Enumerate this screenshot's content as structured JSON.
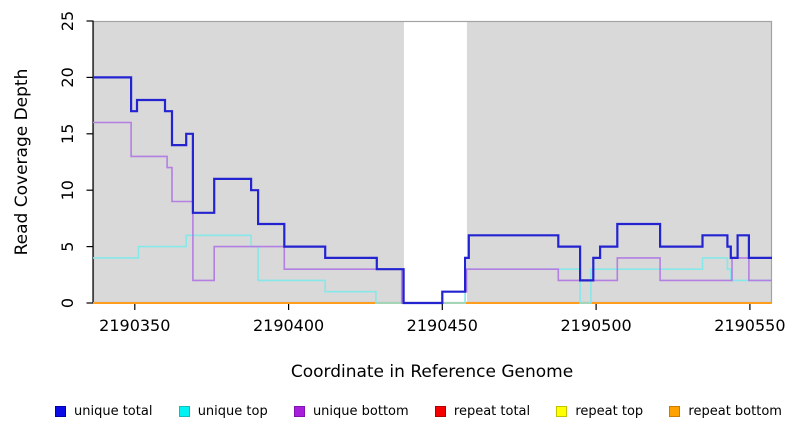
{
  "chart_data": {
    "type": "line",
    "subtype": "step",
    "title": "",
    "xlabel": "Coordinate in Reference Genome",
    "ylabel": "Read Coverage Depth",
    "xlim": [
      2190336.4,
      2190557.2
    ],
    "ylim": [
      0,
      25
    ],
    "x_tick_values": [
      2190350,
      2190400,
      2190450,
      2190500,
      2190550
    ],
    "x_tick_labels": [
      "2190350",
      "2190400",
      "2190450",
      "2190500",
      "2190550"
    ],
    "y_tick_values": [
      0,
      5,
      10,
      15,
      20,
      25
    ],
    "y_tick_labels": [
      "0",
      "5",
      "10",
      "15",
      "20",
      "25"
    ],
    "grid": false,
    "legend_position": "bottom",
    "colors": {
      "plot_background": "#d9d9d9",
      "plot_border": "#a3a3a3",
      "highlight_band": "#ffffff",
      "axis": "#000000"
    },
    "highlight_band": {
      "x_start": 2190437.5,
      "x_end": 2190458.0
    },
    "draw_order": [
      3,
      4,
      5,
      1,
      2,
      0
    ],
    "series": [
      {
        "name": "unique total",
        "line_color": "#2323d0",
        "line_width": 2.2,
        "swatch_fill": "#0b0be6",
        "swatch_border": "#0000a8",
        "steps": [
          [
            2190336.4,
            20
          ],
          [
            2190348.8,
            17
          ],
          [
            2190350.7,
            18
          ],
          [
            2190359.8,
            17
          ],
          [
            2190362.1,
            14
          ],
          [
            2190366.7,
            15
          ],
          [
            2190368.9,
            8
          ],
          [
            2190375.8,
            11
          ],
          [
            2190387.8,
            10
          ],
          [
            2190390.1,
            7
          ],
          [
            2190398.6,
            5
          ],
          [
            2190411.9,
            4
          ],
          [
            2190428.7,
            3
          ],
          [
            2190437.4,
            0
          ],
          [
            2190450.0,
            1
          ],
          [
            2190457.4,
            4
          ],
          [
            2190458.6,
            6
          ],
          [
            2190487.7,
            5
          ],
          [
            2190494.8,
            2
          ],
          [
            2190499.1,
            4
          ],
          [
            2190501.3,
            5
          ],
          [
            2190506.9,
            7
          ],
          [
            2190520.8,
            5
          ],
          [
            2190534.6,
            6
          ],
          [
            2190542.7,
            5
          ],
          [
            2190543.8,
            4
          ],
          [
            2190546.0,
            6
          ],
          [
            2190549.7,
            4
          ]
        ]
      },
      {
        "name": "unique top",
        "line_color": "#86e8e8",
        "line_width": 1.6,
        "swatch_fill": "#00f2f2",
        "swatch_border": "#12bcbc",
        "steps": [
          [
            2190336.4,
            4
          ],
          [
            2190351.2,
            5
          ],
          [
            2190366.7,
            6
          ],
          [
            2190387.8,
            5
          ],
          [
            2190390.1,
            2
          ],
          [
            2190411.9,
            1
          ],
          [
            2190428.4,
            0
          ],
          [
            2190457.4,
            3
          ],
          [
            2190494.8,
            0
          ],
          [
            2190498.3,
            3
          ],
          [
            2190534.6,
            4
          ],
          [
            2190542.7,
            3
          ],
          [
            2190543.8,
            2
          ]
        ]
      },
      {
        "name": "unique bottom",
        "line_color": "#b37fe2",
        "line_width": 1.6,
        "swatch_fill": "#a81fdb",
        "swatch_border": "#8012b0",
        "steps": [
          [
            2190336.4,
            16
          ],
          [
            2190348.8,
            13
          ],
          [
            2190360.5,
            12
          ],
          [
            2190362.1,
            9
          ],
          [
            2190368.9,
            2
          ],
          [
            2190375.8,
            5
          ],
          [
            2190398.6,
            3
          ],
          [
            2190436.8,
            0
          ],
          [
            2190450.0,
            1
          ],
          [
            2190457.9,
            3
          ],
          [
            2190487.7,
            2
          ],
          [
            2190506.9,
            4
          ],
          [
            2190520.8,
            2
          ],
          [
            2190544.2,
            4
          ],
          [
            2190549.7,
            2
          ]
        ]
      },
      {
        "name": "repeat total",
        "line_color": "#d40000",
        "line_width": 1.4,
        "swatch_fill": "#f50000",
        "swatch_border": "#b00000",
        "steps": [
          [
            2190336.4,
            0
          ]
        ]
      },
      {
        "name": "repeat top",
        "line_color": "#eded00",
        "line_width": 1.4,
        "swatch_fill": "#ffff00",
        "swatch_border": "#c2c200",
        "steps": [
          [
            2190336.4,
            0
          ]
        ]
      },
      {
        "name": "repeat bottom",
        "line_color": "#ff9d1e",
        "line_width": 2.0,
        "swatch_fill": "#ffa200",
        "swatch_border": "#cc7a00",
        "steps": [
          [
            2190336.4,
            0
          ]
        ]
      }
    ]
  }
}
